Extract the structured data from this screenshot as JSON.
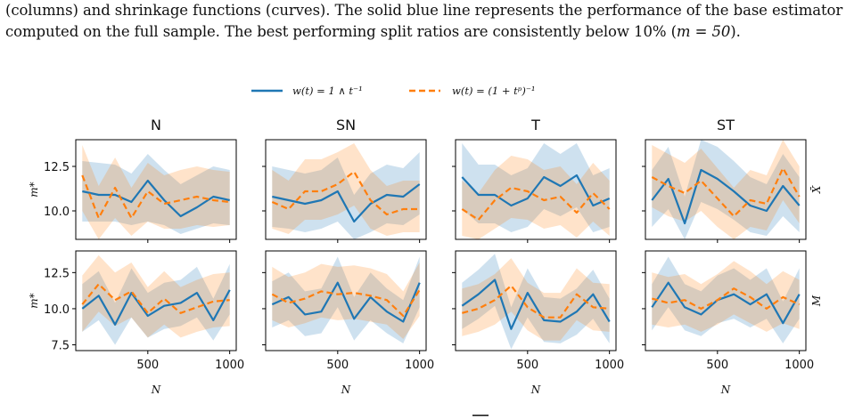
{
  "caption": {
    "line1": "(columns) and shrinkage functions (curves). The solid blue line represents the performance of the base estimator",
    "line2_pre": "computed on the full sample. The best performing split ratios are consistently below 10% (",
    "line2_math": "m = 50",
    "line2_post": ")."
  },
  "legend": [
    {
      "label": "w(t) = 1 ∧ t⁻¹",
      "color": "#1f77b4",
      "dash": false
    },
    {
      "label": "w(t) = (1 + tᵖ)⁻¹",
      "color": "#ff7f0e",
      "dash": true
    }
  ],
  "colors": {
    "blue": "#1f77b4",
    "orange": "#ff7f0e"
  },
  "chart_data": {
    "type": "line",
    "columns": [
      "N",
      "SN",
      "T",
      "ST"
    ],
    "rows": [
      "X̄",
      "M"
    ],
    "xlabel": "N",
    "ylabel": "m*",
    "x": [
      100,
      200,
      300,
      400,
      500,
      600,
      700,
      800,
      900,
      1000
    ],
    "xticks": [
      500,
      1000
    ],
    "xlim": [
      60,
      1040
    ],
    "row_ylim": [
      [
        8.4,
        14.0
      ],
      [
        7.1,
        14.0
      ]
    ],
    "row_yticks": [
      [
        10.0,
        12.5
      ],
      [
        7.5,
        10.0,
        12.5
      ]
    ],
    "panels": [
      [
        {
          "blue": [
            11.1,
            10.9,
            10.9,
            10.5,
            11.7,
            10.6,
            9.7,
            10.2,
            10.8,
            10.6
          ],
          "blue_band": [
            [
              9.4,
              12.8
            ],
            [
              9.4,
              12.7
            ],
            [
              9.4,
              12.6
            ],
            [
              9.2,
              12.1
            ],
            [
              9.4,
              13.2
            ],
            [
              9.2,
              12.3
            ],
            [
              8.7,
              11.5
            ],
            [
              9.0,
              12.0
            ],
            [
              9.3,
              12.5
            ],
            [
              9.2,
              12.3
            ]
          ],
          "orange": [
            12.0,
            9.6,
            11.3,
            9.6,
            11.1,
            10.4,
            10.6,
            10.8,
            10.6,
            10.5
          ],
          "orange_band": [
            [
              10.0,
              13.7
            ],
            [
              8.4,
              11.4
            ],
            [
              9.6,
              13.0
            ],
            [
              8.6,
              11.3
            ],
            [
              9.4,
              12.7
            ],
            [
              9.0,
              12.0
            ],
            [
              9.0,
              12.3
            ],
            [
              9.2,
              12.5
            ],
            [
              9.1,
              12.3
            ],
            [
              9.2,
              12.2
            ]
          ]
        },
        {
          "blue": [
            10.8,
            10.6,
            10.4,
            10.6,
            11.1,
            9.4,
            10.4,
            10.9,
            10.8,
            11.5
          ],
          "blue_band": [
            [
              9.1,
              12.5
            ],
            [
              9.0,
              12.3
            ],
            [
              8.8,
              12.1
            ],
            [
              9.0,
              12.3
            ],
            [
              9.4,
              13.0
            ],
            [
              8.4,
              10.9
            ],
            [
              8.8,
              12.1
            ],
            [
              9.3,
              12.6
            ],
            [
              9.2,
              12.4
            ],
            [
              9.8,
              13.3
            ]
          ],
          "orange": [
            10.5,
            10.1,
            11.1,
            11.1,
            11.5,
            12.2,
            10.6,
            9.8,
            10.1,
            10.1
          ],
          "orange_band": [
            [
              9.0,
              12.3
            ],
            [
              8.7,
              11.7
            ],
            [
              9.5,
              12.9
            ],
            [
              9.5,
              12.9
            ],
            [
              9.8,
              13.3
            ],
            [
              10.3,
              13.8
            ],
            [
              9.0,
              12.3
            ],
            [
              8.6,
              11.4
            ],
            [
              8.8,
              11.7
            ],
            [
              8.8,
              11.7
            ]
          ]
        },
        {
          "blue": [
            11.9,
            10.9,
            10.9,
            10.3,
            10.7,
            11.9,
            11.4,
            12.0,
            10.3,
            10.7
          ],
          "blue_band": [
            [
              10.1,
              13.8
            ],
            [
              9.3,
              12.6
            ],
            [
              9.3,
              12.6
            ],
            [
              8.8,
              12.0
            ],
            [
              9.1,
              12.4
            ],
            [
              10.1,
              13.8
            ],
            [
              9.7,
              13.2
            ],
            [
              10.2,
              13.8
            ],
            [
              8.8,
              12.0
            ],
            [
              9.1,
              12.4
            ]
          ],
          "orange": [
            10.1,
            9.5,
            10.6,
            11.3,
            11.1,
            10.6,
            10.8,
            9.9,
            11.0,
            10.1
          ],
          "orange_band": [
            [
              8.6,
              11.7
            ],
            [
              8.4,
              11.0
            ],
            [
              9.0,
              12.3
            ],
            [
              9.6,
              13.1
            ],
            [
              9.5,
              12.9
            ],
            [
              9.0,
              12.3
            ],
            [
              9.2,
              12.5
            ],
            [
              8.5,
              11.5
            ],
            [
              9.4,
              12.7
            ],
            [
              8.6,
              11.7
            ]
          ]
        },
        {
          "blue": [
            10.6,
            11.8,
            9.3,
            12.3,
            11.8,
            11.1,
            10.3,
            10.0,
            11.4,
            10.3
          ],
          "blue_band": [
            [
              9.1,
              12.3
            ],
            [
              10.1,
              13.6
            ],
            [
              8.4,
              10.8
            ],
            [
              10.5,
              14.0
            ],
            [
              10.1,
              13.6
            ],
            [
              9.5,
              12.8
            ],
            [
              8.8,
              11.9
            ],
            [
              8.6,
              11.5
            ],
            [
              9.7,
              13.2
            ],
            [
              8.8,
              11.9
            ]
          ],
          "orange": [
            11.9,
            11.4,
            11.0,
            11.7,
            10.7,
            9.7,
            10.6,
            10.4,
            12.4,
            10.8
          ],
          "orange_band": [
            [
              10.2,
              13.7
            ],
            [
              9.7,
              13.2
            ],
            [
              9.4,
              12.7
            ],
            [
              10.0,
              13.5
            ],
            [
              9.1,
              12.4
            ],
            [
              8.4,
              11.3
            ],
            [
              9.1,
              12.3
            ],
            [
              8.9,
              12.0
            ],
            [
              10.6,
              14.0
            ],
            [
              9.3,
              12.5
            ]
          ]
        }
      ],
      [
        {
          "blue": [
            10.0,
            10.9,
            8.9,
            11.1,
            9.5,
            10.2,
            10.4,
            11.1,
            9.2,
            11.3
          ],
          "blue_band": [
            [
              8.4,
              11.7
            ],
            [
              9.2,
              12.6
            ],
            [
              7.5,
              10.4
            ],
            [
              9.4,
              12.8
            ],
            [
              8.0,
              11.1
            ],
            [
              8.6,
              11.8
            ],
            [
              8.8,
              12.0
            ],
            [
              9.4,
              12.9
            ],
            [
              7.8,
              10.7
            ],
            [
              9.6,
              13.1
            ]
          ],
          "orange": [
            10.3,
            11.7,
            10.6,
            11.2,
            9.7,
            10.7,
            9.7,
            10.1,
            10.5,
            10.6
          ],
          "orange_band": [
            [
              8.4,
              12.3
            ],
            [
              9.8,
              13.7
            ],
            [
              8.8,
              12.5
            ],
            [
              9.4,
              13.2
            ],
            [
              8.0,
              11.5
            ],
            [
              8.9,
              12.6
            ],
            [
              8.0,
              11.5
            ],
            [
              8.4,
              12.0
            ],
            [
              8.7,
              12.4
            ],
            [
              8.8,
              12.5
            ]
          ]
        },
        {
          "blue": [
            10.3,
            10.8,
            9.6,
            9.8,
            11.8,
            9.3,
            10.8,
            9.8,
            9.1,
            11.8
          ],
          "blue_band": [
            [
              8.7,
              11.9
            ],
            [
              9.2,
              12.5
            ],
            [
              8.1,
              11.2
            ],
            [
              8.3,
              11.4
            ],
            [
              10.1,
              13.6
            ],
            [
              7.8,
              10.8
            ],
            [
              9.2,
              12.5
            ],
            [
              8.3,
              11.4
            ],
            [
              7.6,
              10.6
            ],
            [
              10.1,
              13.6
            ]
          ],
          "orange": [
            11.0,
            10.4,
            10.7,
            11.2,
            11.0,
            11.1,
            10.9,
            10.6,
            9.5,
            11.3
          ],
          "orange_band": [
            [
              9.2,
              12.9
            ],
            [
              8.7,
              12.2
            ],
            [
              9.0,
              12.5
            ],
            [
              9.4,
              13.1
            ],
            [
              9.2,
              12.9
            ],
            [
              9.3,
              13.0
            ],
            [
              9.1,
              12.8
            ],
            [
              8.9,
              12.4
            ],
            [
              7.9,
              11.2
            ],
            [
              9.5,
              13.2
            ]
          ]
        },
        {
          "blue": [
            10.2,
            11.0,
            12.0,
            8.6,
            11.1,
            9.2,
            9.1,
            9.8,
            11.0,
            9.1
          ],
          "blue_band": [
            [
              8.6,
              11.8
            ],
            [
              9.3,
              12.7
            ],
            [
              10.2,
              13.8
            ],
            [
              7.2,
              10.1
            ],
            [
              9.4,
              12.8
            ],
            [
              7.7,
              10.8
            ],
            [
              7.6,
              10.7
            ],
            [
              8.2,
              11.4
            ],
            [
              9.3,
              12.7
            ],
            [
              7.6,
              10.7
            ]
          ],
          "orange": [
            9.7,
            10.0,
            10.6,
            11.6,
            10.1,
            9.4,
            9.4,
            11.0,
            10.1,
            10.0
          ],
          "orange_band": [
            [
              8.1,
              11.4
            ],
            [
              8.4,
              11.7
            ],
            [
              8.9,
              12.4
            ],
            [
              9.8,
              13.5
            ],
            [
              8.5,
              11.8
            ],
            [
              7.8,
              11.1
            ],
            [
              7.8,
              11.1
            ],
            [
              9.2,
              12.8
            ],
            [
              8.5,
              11.8
            ],
            [
              8.4,
              11.7
            ]
          ]
        },
        {
          "blue": [
            10.1,
            11.8,
            10.1,
            9.6,
            10.6,
            11.0,
            10.3,
            11.0,
            9.0,
            11.0
          ],
          "blue_band": [
            [
              8.5,
              11.7
            ],
            [
              10.1,
              13.6
            ],
            [
              8.5,
              11.7
            ],
            [
              8.1,
              11.2
            ],
            [
              9.0,
              12.3
            ],
            [
              9.3,
              12.8
            ],
            [
              8.7,
              12.0
            ],
            [
              9.3,
              12.8
            ],
            [
              7.6,
              10.5
            ],
            [
              9.3,
              12.8
            ]
          ],
          "orange": [
            10.7,
            10.4,
            10.6,
            10.0,
            10.6,
            11.4,
            10.8,
            10.0,
            10.8,
            10.3
          ],
          "orange_band": [
            [
              8.9,
              12.5
            ],
            [
              8.7,
              12.2
            ],
            [
              8.9,
              12.4
            ],
            [
              8.4,
              11.7
            ],
            [
              8.9,
              12.4
            ],
            [
              9.6,
              13.3
            ],
            [
              9.0,
              12.6
            ],
            [
              8.4,
              11.7
            ],
            [
              9.0,
              12.6
            ],
            [
              8.6,
              12.0
            ]
          ]
        }
      ]
    ]
  }
}
